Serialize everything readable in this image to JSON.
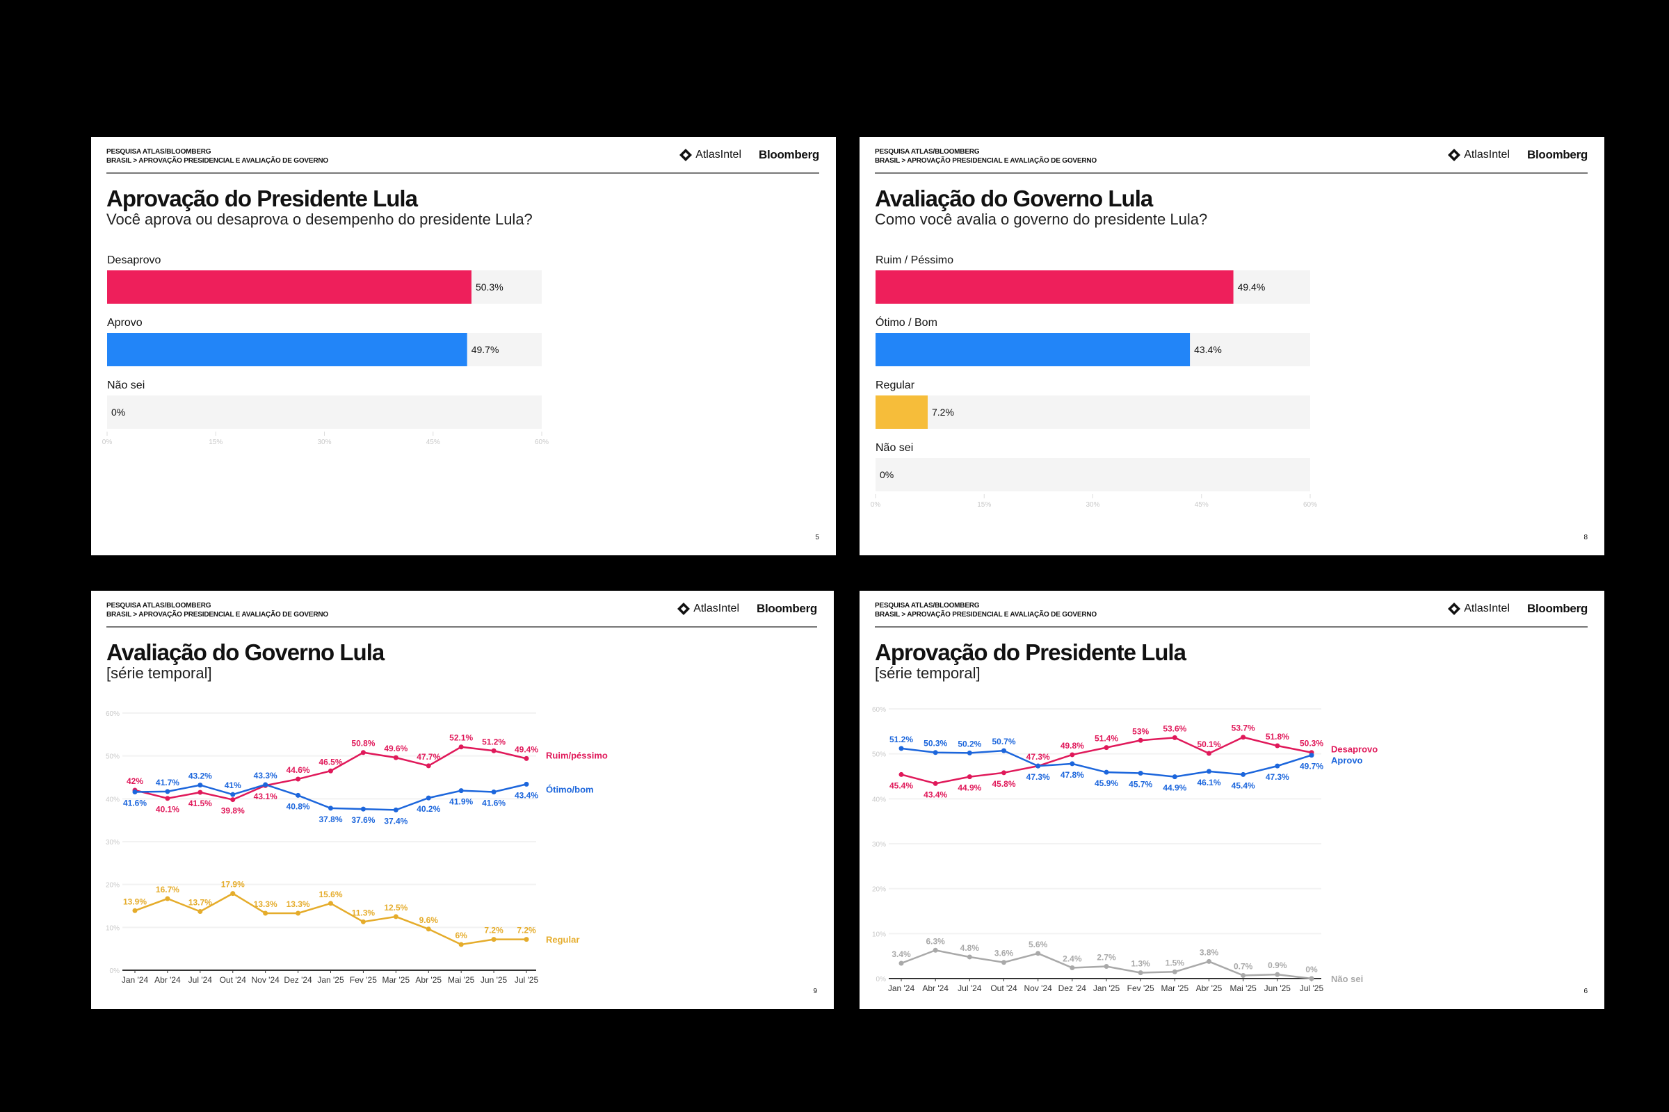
{
  "header": {
    "line1": "PESQUISA ATLAS/BLOOMBERG",
    "line2": "BRASIL > APROVAÇÃO PRESIDENCIAL E AVALIAÇÃO DE GOVERNO",
    "logo_atlas": "AtlasIntel",
    "logo_bloomberg": "Bloomberg",
    "logo_icon": "diamond-icon"
  },
  "slides": [
    {
      "title": "Aprovação do Presidente Lula",
      "subtitle": "Você aprova ou desaprova o desempenho do presidente Lula?",
      "page": "5"
    },
    {
      "title": "Avaliação do Governo Lula",
      "subtitle": "Como você avalia o governo do presidente Lula?",
      "page": "8"
    },
    {
      "title": "Avaliação do Governo Lula",
      "subtitle": "[série temporal]",
      "page": "9"
    },
    {
      "title": "Aprovação do Presidente Lula",
      "subtitle": "[série temporal]",
      "page": "6"
    }
  ],
  "colors": {
    "red": "#ee1f5b",
    "blue": "#2285f8",
    "yellow": "#f6bd3a",
    "line_red": "#e0195a",
    "line_blue": "#1c66dc",
    "line_yellow": "#e5ac2b",
    "line_gray": "#a9a9a9",
    "track": "#f4f4f4"
  },
  "chart_data": [
    {
      "type": "bar",
      "orientation": "horizontal",
      "categories": [
        "Desaprovo",
        "Aprovo",
        "Não sei"
      ],
      "values": [
        50.3,
        49.7,
        0
      ],
      "labels": [
        "50.3%",
        "49.7%",
        "0%"
      ],
      "bar_colors": [
        "#ee1f5b",
        "#2285f8",
        "#f4f4f4"
      ],
      "xlim": [
        0,
        60
      ],
      "ticks": [
        "0%",
        "15%",
        "30%",
        "45%",
        "60%"
      ]
    },
    {
      "type": "bar",
      "orientation": "horizontal",
      "categories": [
        "Ruim / Péssimo",
        "Ótimo / Bom",
        "Regular",
        "Não sei"
      ],
      "values": [
        49.4,
        43.4,
        7.2,
        0
      ],
      "labels": [
        "49.4%",
        "43.4%",
        "7.2%",
        "0%"
      ],
      "bar_colors": [
        "#ee1f5b",
        "#2285f8",
        "#f6bd3a",
        "#f4f4f4"
      ],
      "xlim": [
        0,
        60
      ],
      "ticks": [
        "0%",
        "15%",
        "30%",
        "45%",
        "60%"
      ]
    },
    {
      "type": "line",
      "categories": [
        "Jan '24",
        "Abr '24",
        "Jul '24",
        "Out '24",
        "Nov '24",
        "Dez '24",
        "Jan '25",
        "Fev '25",
        "Mar '25",
        "Abr '25",
        "Mai '25",
        "Jun '25",
        "Jul '25"
      ],
      "ylim": [
        0,
        60
      ],
      "yticks": [
        "0%",
        "10%",
        "20%",
        "30%",
        "40%",
        "50%",
        "60%"
      ],
      "grid": true,
      "series": [
        {
          "name": "Ruim/péssimo",
          "color": "#e0195a",
          "values": [
            42,
            40.1,
            41.5,
            39.8,
            43.1,
            44.6,
            46.5,
            50.8,
            49.6,
            47.7,
            52.1,
            51.2,
            49.4
          ]
        },
        {
          "name": "Ótimo/bom",
          "color": "#1c66dc",
          "values": [
            41.6,
            41.7,
            43.2,
            41,
            43.3,
            40.8,
            37.8,
            37.6,
            37.4,
            40.2,
            41.9,
            41.6,
            43.4
          ]
        },
        {
          "name": "Regular",
          "color": "#e5ac2b",
          "values": [
            13.9,
            16.7,
            13.7,
            17.9,
            13.3,
            13.3,
            15.6,
            11.3,
            12.5,
            9.6,
            6,
            7.2,
            7.2
          ]
        }
      ]
    },
    {
      "type": "line",
      "categories": [
        "Jan '24",
        "Abr '24",
        "Jul '24",
        "Out '24",
        "Nov '24",
        "Dez '24",
        "Jan '25",
        "Fev '25",
        "Mar '25",
        "Abr '25",
        "Mai '25",
        "Jun '25",
        "Jul '25"
      ],
      "ylim": [
        0,
        60
      ],
      "yticks": [
        "0%",
        "10%",
        "20%",
        "30%",
        "40%",
        "50%",
        "60%"
      ],
      "grid": true,
      "series": [
        {
          "name": "Desaprovo",
          "color": "#e0195a",
          "values": [
            45.4,
            43.4,
            44.9,
            45.8,
            47.3,
            49.8,
            51.4,
            53,
            53.6,
            50.1,
            53.7,
            51.8,
            50.3
          ]
        },
        {
          "name": "Aprovo",
          "color": "#1c66dc",
          "values": [
            51.2,
            50.3,
            50.2,
            50.7,
            47.3,
            47.8,
            45.9,
            45.7,
            44.9,
            46.1,
            45.4,
            47.3,
            49.7
          ]
        },
        {
          "name": "Não sei",
          "color": "#a9a9a9",
          "values": [
            3.4,
            6.3,
            4.8,
            3.6,
            5.6,
            2.4,
            2.7,
            1.3,
            1.5,
            3.8,
            0.7,
            0.9,
            0
          ]
        }
      ]
    }
  ]
}
